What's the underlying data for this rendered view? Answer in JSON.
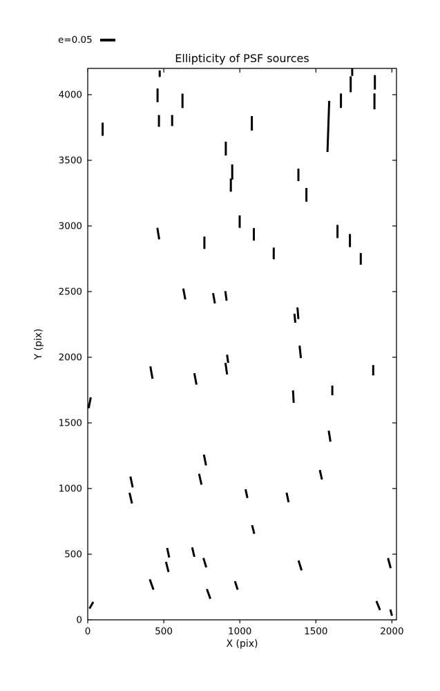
{
  "figure": {
    "title": "Ellipticity of PSF sources",
    "xlabel": "X (pix)",
    "ylabel": "Y (pix)",
    "legend_label": "e=0.05",
    "background_color": "#ffffff",
    "foreground_color": "#000000"
  },
  "chart_data": {
    "type": "scatter",
    "subtype": "ellipticity-stick-plot",
    "title": "Ellipticity of PSF sources",
    "xlabel": "X (pix)",
    "ylabel": "Y (pix)",
    "xlim": [
      0,
      2030
    ],
    "ylim": [
      0,
      4200
    ],
    "xticks": [
      0,
      500,
      1000,
      1500,
      2000
    ],
    "yticks": [
      0,
      500,
      1000,
      1500,
      2000,
      2500,
      3000,
      3500,
      4000
    ],
    "grid": false,
    "legend": {
      "label": "e=0.05",
      "location": "upper-left-outside-axes"
    },
    "stick_color": "#000000",
    "stick_format": [
      "x",
      "y",
      "len",
      "angle_deg"
    ],
    "sticks": [
      [
        459,
        3995,
        105,
        0
      ],
      [
        623,
        3953,
        110,
        0
      ],
      [
        468,
        3800,
        89,
        0
      ],
      [
        555,
        3803,
        84,
        0
      ],
      [
        98,
        3737,
        100,
        0
      ],
      [
        1079,
        3782,
        110,
        0
      ],
      [
        908,
        3589,
        105,
        0
      ],
      [
        950,
        3411,
        116,
        0
      ],
      [
        941,
        3311,
        100,
        0
      ],
      [
        1739,
        4174,
        63,
        0
      ],
      [
        1729,
        4079,
        121,
        0
      ],
      [
        1888,
        4094,
        110,
        0
      ],
      [
        1885,
        3949,
        121,
        0
      ],
      [
        1665,
        3954,
        110,
        0
      ],
      [
        1582,
        3758,
        389,
        -2
      ],
      [
        473,
        4160,
        50,
        0
      ],
      [
        464,
        2942,
        89,
        9
      ],
      [
        999,
        3033,
        95,
        0
      ],
      [
        1092,
        2936,
        95,
        0
      ],
      [
        767,
        2872,
        95,
        0
      ],
      [
        1223,
        2791,
        89,
        0
      ],
      [
        1385,
        3389,
        95,
        0
      ],
      [
        1438,
        3237,
        105,
        0
      ],
      [
        1642,
        2958,
        100,
        0
      ],
      [
        1724,
        2889,
        100,
        0
      ],
      [
        1795,
        2749,
        89,
        0
      ],
      [
        635,
        2482,
        84,
        11
      ],
      [
        830,
        2449,
        79,
        10
      ],
      [
        909,
        2467,
        74,
        8
      ],
      [
        1382,
        2335,
        89,
        5
      ],
      [
        1362,
        2297,
        68,
        5
      ],
      [
        1397,
        2041,
        95,
        6
      ],
      [
        1877,
        1901,
        79,
        0
      ],
      [
        920,
        1988,
        63,
        8
      ],
      [
        911,
        1913,
        89,
        8
      ],
      [
        419,
        1883,
        95,
        10
      ],
      [
        708,
        1835,
        89,
        11
      ],
      [
        13,
        1653,
        84,
        -11
      ],
      [
        1608,
        1747,
        74,
        0
      ],
      [
        1352,
        1700,
        95,
        3
      ],
      [
        1590,
        1399,
        84,
        9
      ],
      [
        771,
        1217,
        84,
        11
      ],
      [
        740,
        1071,
        84,
        13
      ],
      [
        288,
        1050,
        84,
        12
      ],
      [
        283,
        927,
        84,
        13
      ],
      [
        1044,
        961,
        68,
        12
      ],
      [
        1314,
        932,
        74,
        12
      ],
      [
        1533,
        1105,
        74,
        13
      ],
      [
        1088,
        688,
        68,
        14
      ],
      [
        694,
        516,
        74,
        13
      ],
      [
        770,
        435,
        74,
        17
      ],
      [
        529,
        511,
        74,
        12
      ],
      [
        523,
        403,
        79,
        14
      ],
      [
        420,
        269,
        84,
        20
      ],
      [
        977,
        262,
        68,
        18
      ],
      [
        795,
        197,
        79,
        20
      ],
      [
        1396,
        414,
        79,
        17
      ],
      [
        1983,
        432,
        79,
        15
      ],
      [
        1910,
        109,
        74,
        22
      ],
      [
        24,
        111,
        58,
        -29
      ],
      [
        1995,
        55,
        50,
        15
      ]
    ]
  }
}
